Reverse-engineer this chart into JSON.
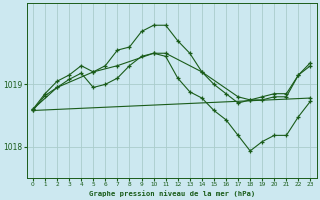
{
  "title": "Graphe pression niveau de la mer (hPa)",
  "background_color": "#cce8f0",
  "grid_color": "#aacccc",
  "line_color": "#1a5c1a",
  "xlim": [
    -0.5,
    23.5
  ],
  "ylim": [
    1017.5,
    1020.3
  ],
  "yticks": [
    1018,
    1019
  ],
  "xticks": [
    0,
    1,
    2,
    3,
    4,
    5,
    6,
    7,
    8,
    9,
    10,
    11,
    12,
    13,
    14,
    15,
    16,
    17,
    18,
    19,
    20,
    21,
    22,
    23
  ],
  "series": [
    {
      "x": [
        0,
        1,
        2,
        3,
        4,
        5,
        6,
        7,
        8,
        9,
        10,
        11,
        12,
        13,
        14,
        15,
        16,
        17,
        18,
        19,
        20,
        21,
        22,
        23
      ],
      "y": [
        1018.6,
        1018.85,
        1019.05,
        1019.15,
        1019.3,
        1019.2,
        1019.3,
        1019.55,
        1019.6,
        1019.85,
        1019.95,
        1019.95,
        1019.7,
        1019.5,
        1019.2,
        1019.0,
        1018.85,
        1018.7,
        1018.75,
        1018.8,
        1018.85,
        1018.85,
        1019.15,
        1019.3
      ]
    },
    {
      "x": [
        0,
        2,
        5,
        7,
        10,
        11,
        14,
        17,
        18,
        19,
        20,
        21,
        22,
        23
      ],
      "y": [
        1018.6,
        1018.95,
        1019.2,
        1019.3,
        1019.5,
        1019.5,
        1019.2,
        1018.8,
        1018.75,
        1018.75,
        1018.8,
        1018.8,
        1019.15,
        1019.35
      ]
    },
    {
      "x": [
        0,
        1,
        2,
        3,
        4,
        5,
        6,
        7,
        8,
        9,
        10,
        11,
        12,
        13,
        14,
        15,
        16,
        17,
        18,
        19,
        20,
        21,
        22,
        23
      ],
      "y": [
        1018.58,
        1018.82,
        1018.95,
        1019.08,
        1019.18,
        1018.95,
        1019.0,
        1019.1,
        1019.3,
        1019.45,
        1019.5,
        1019.45,
        1019.1,
        1018.88,
        1018.78,
        1018.58,
        1018.43,
        1018.18,
        1017.93,
        1018.08,
        1018.18,
        1018.18,
        1018.48,
        1018.73
      ]
    },
    {
      "x": [
        0,
        23
      ],
      "y": [
        1018.58,
        1018.78
      ]
    }
  ]
}
